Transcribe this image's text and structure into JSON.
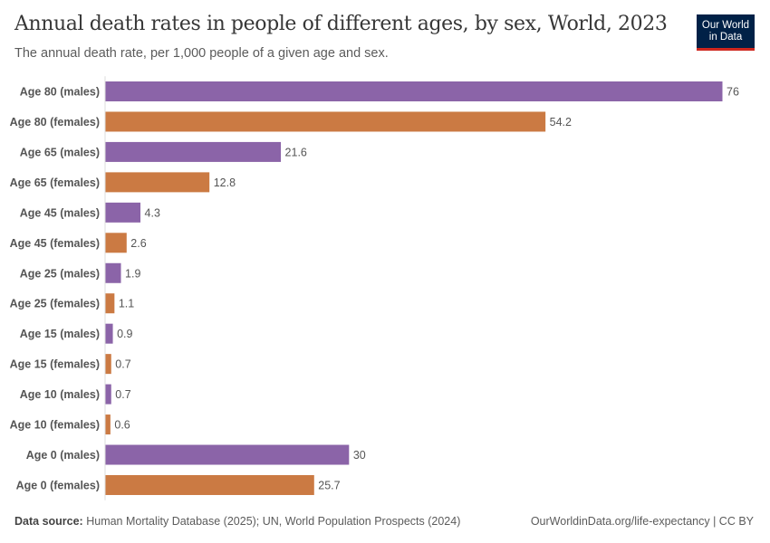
{
  "header": {
    "title": "Annual death rates in people of different ages, by sex, World, 2023",
    "subtitle": "The annual death rate, per 1,000 people of a given age and sex.",
    "logo": "Our World in Data"
  },
  "footer": {
    "source_label": "Data source:",
    "source_text": "Human Mortality Database (2025); UN, World Population Prospects (2024)",
    "url": "OurWorldinData.org/life-expectancy | CC BY"
  },
  "colors": {
    "males": "#8b64a8",
    "females": "#cb7a43"
  },
  "chart_data": {
    "type": "bar",
    "orientation": "horizontal",
    "title": "Annual death rates in people of different ages, by sex, World, 2023",
    "categories": [
      "Age 80 (males)",
      "Age 80 (females)",
      "Age 65 (males)",
      "Age 65 (females)",
      "Age 45 (males)",
      "Age 45 (females)",
      "Age 25 (males)",
      "Age 25 (females)",
      "Age 15 (males)",
      "Age 15 (females)",
      "Age 10 (males)",
      "Age 10 (females)",
      "Age 0 (males)",
      "Age 0 (females)"
    ],
    "values": [
      76,
      54.2,
      21.6,
      12.8,
      4.3,
      2.6,
      1.9,
      1.1,
      0.9,
      0.7,
      0.7,
      0.6,
      30,
      25.7
    ],
    "labels": [
      "76",
      "54.2",
      "21.6",
      "12.8",
      "4.3",
      "2.6",
      "1.9",
      "1.1",
      "0.9",
      "0.7",
      "0.7",
      "0.6",
      "30",
      "25.7"
    ],
    "xlim": [
      0,
      76
    ],
    "grid": false
  }
}
